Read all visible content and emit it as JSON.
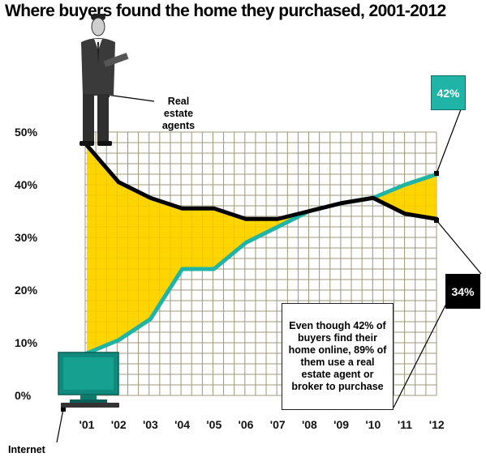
{
  "title": "Where buyers found the home they purchased, 2001-2012",
  "chart_data": {
    "type": "line",
    "x": [
      "'01",
      "'02",
      "'03",
      "'04",
      "'05",
      "'06",
      "'07",
      "'08",
      "'09",
      "'10",
      "'11",
      "'12"
    ],
    "ylim": [
      0,
      50
    ],
    "yticks": [
      "0%",
      "10%",
      "20%",
      "30%",
      "40%",
      "50%"
    ],
    "grid": true,
    "fill_between": {
      "color": "#ffd500",
      "description": "yellow area between the two lines"
    },
    "series": [
      {
        "key": "agents",
        "color": "#000000",
        "values": [
          47.5,
          40.5,
          37.5,
          35.5,
          35.5,
          33.5,
          33.5,
          35,
          36.5,
          37.5,
          34.5,
          33.5
        ]
      },
      {
        "key": "internet",
        "color": "#1fb4a5",
        "values": [
          8,
          10.5,
          14.5,
          24,
          24,
          29,
          32,
          35,
          36.5,
          37.5,
          40,
          42
        ]
      }
    ]
  },
  "annotations": {
    "agents_label": "Real estate agents",
    "internet_label": "Internet",
    "internet_value": "42%",
    "agents_value": "34%",
    "note": "Even though 42% of buyers find their home online, 89% of them use a real estate agent or broker to purchase"
  },
  "icons": {
    "agent": "businessman-illustration",
    "internet": "computer-monitor-icon"
  }
}
